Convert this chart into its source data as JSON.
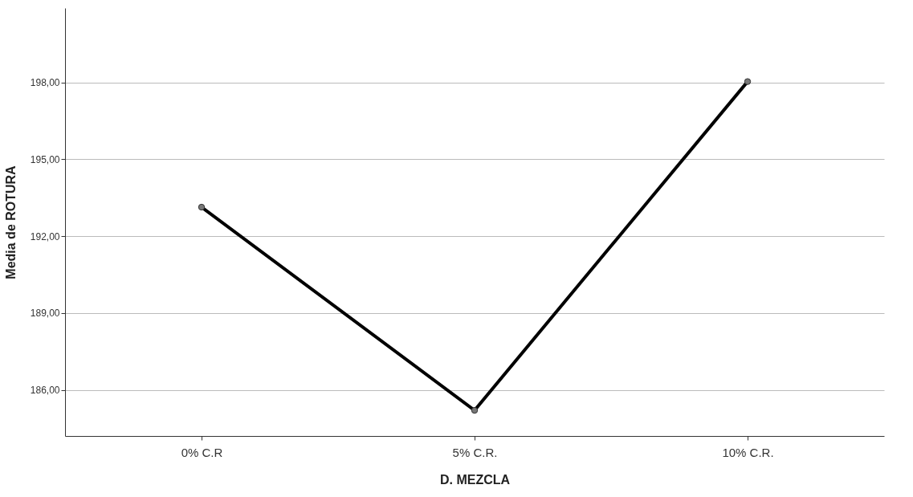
{
  "chart_data": {
    "type": "line",
    "xlabel": "D. MEZCLA",
    "ylabel": "Media de ROTURA",
    "categories": [
      "0% C.R",
      "5% C.R.",
      "10% C.R."
    ],
    "series": [
      {
        "color": "#000000",
        "values": [
          193.13,
          185.2,
          198.03
        ]
      }
    ],
    "ylim": [
      184.2,
      200.9
    ],
    "yticks": [
      {
        "value": 186,
        "label": "186,00"
      },
      {
        "value": 189,
        "label": "189,00"
      },
      {
        "value": 192,
        "label": "192,00"
      },
      {
        "value": 195,
        "label": "195,00"
      },
      {
        "value": 198,
        "label": "198,00"
      }
    ],
    "grid": "y",
    "marker": "circle",
    "line_style": "solid"
  }
}
